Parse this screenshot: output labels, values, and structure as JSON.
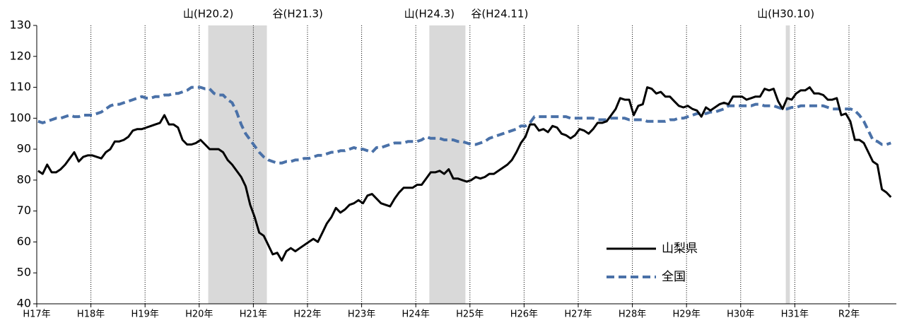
{
  "chart_data": {
    "type": "line",
    "categories": [
      "H17年",
      null,
      null,
      null,
      null,
      null,
      null,
      null,
      null,
      null,
      null,
      null,
      "H18年",
      null,
      null,
      null,
      null,
      null,
      null,
      null,
      null,
      null,
      null,
      null,
      "H19年",
      null,
      null,
      null,
      null,
      null,
      null,
      null,
      null,
      null,
      null,
      null,
      "H20年",
      null,
      null,
      null,
      null,
      null,
      null,
      null,
      null,
      null,
      null,
      null,
      "H21年",
      null,
      null,
      null,
      null,
      null,
      null,
      null,
      null,
      null,
      null,
      null,
      "H22年",
      null,
      null,
      null,
      null,
      null,
      null,
      null,
      null,
      null,
      null,
      null,
      "H23年",
      null,
      null,
      null,
      null,
      null,
      null,
      null,
      null,
      null,
      null,
      null,
      "H24年",
      null,
      null,
      null,
      null,
      null,
      null,
      null,
      null,
      null,
      null,
      null,
      "H25年",
      null,
      null,
      null,
      null,
      null,
      null,
      null,
      null,
      null,
      null,
      null,
      "H26年",
      null,
      null,
      null,
      null,
      null,
      null,
      null,
      null,
      null,
      null,
      null,
      "H27年",
      null,
      null,
      null,
      null,
      null,
      null,
      null,
      null,
      null,
      null,
      null,
      "H28年",
      null,
      null,
      null,
      null,
      null,
      null,
      null,
      null,
      null,
      null,
      null,
      "H29年",
      null,
      null,
      null,
      null,
      null,
      null,
      null,
      null,
      null,
      null,
      null,
      "H30年",
      null,
      null,
      null,
      null,
      null,
      null,
      null,
      null,
      null,
      null,
      null,
      "H31年",
      null,
      null,
      null,
      null,
      null,
      null,
      null,
      null,
      null,
      null,
      null,
      "R2年",
      null,
      null,
      null,
      null,
      null,
      null,
      null,
      null,
      null
    ],
    "series": [
      {
        "name": "山梨県",
        "color": "#000000",
        "dash": false,
        "values": [
          83,
          82,
          85,
          82.5,
          82.5,
          83.5,
          85,
          87,
          89,
          86,
          87.5,
          88,
          88,
          87.5,
          87,
          89,
          90,
          92.5,
          92.5,
          93,
          94,
          96,
          96.5,
          96.5,
          97,
          97.5,
          98,
          98.5,
          101,
          98,
          98,
          97,
          93,
          91.5,
          91.5,
          92,
          93,
          91.5,
          90,
          90,
          90,
          89,
          86.5,
          85,
          83,
          81,
          78,
          72,
          68,
          63,
          62,
          59,
          56,
          56.5,
          54,
          57,
          58,
          57,
          58,
          59,
          60,
          61,
          60,
          63,
          66,
          68,
          71,
          69.5,
          70.5,
          72,
          72.5,
          73.5,
          72.5,
          75,
          75.5,
          74,
          72.5,
          72,
          71.5,
          74,
          76,
          77.5,
          77.5,
          77.5,
          78.5,
          78.5,
          80.5,
          82.5,
          82.5,
          83,
          82,
          83.5,
          80.5,
          80.5,
          80,
          79.5,
          80,
          81,
          80.5,
          81,
          82,
          82,
          83,
          84,
          85,
          86.5,
          89,
          92,
          94,
          98,
          98,
          96,
          96.5,
          95.5,
          97.5,
          97,
          95,
          94.5,
          93.5,
          94.5,
          96.5,
          96,
          95,
          96.5,
          98.5,
          98.5,
          99,
          101,
          103,
          106.5,
          106,
          106,
          101,
          104,
          104.5,
          110,
          109.5,
          108,
          108.5,
          107,
          107,
          105.5,
          104,
          103.5,
          104,
          103,
          102.5,
          100.5,
          103.5,
          102.5,
          103.5,
          104.5,
          105,
          104.5,
          107,
          107,
          107,
          106,
          106.5,
          107,
          107,
          109.5,
          109,
          109.5,
          105.5,
          103,
          106.5,
          106,
          108,
          109,
          109,
          110,
          108,
          108,
          107.5,
          106,
          106,
          106.5,
          101,
          101.5,
          99,
          93,
          93,
          92,
          89,
          86,
          85,
          77,
          76,
          74.5
        ]
      },
      {
        "name": "全国",
        "color": "#4a71a8",
        "dash": true,
        "values": [
          99,
          98.5,
          99,
          99.5,
          100,
          100,
          100.5,
          101,
          100.5,
          100.5,
          101,
          101,
          101,
          101.5,
          102,
          103,
          104,
          104.5,
          104.5,
          105,
          105.5,
          106,
          106.5,
          107,
          106.5,
          106.5,
          107,
          107,
          107.5,
          107.5,
          108,
          108,
          108.5,
          109,
          110,
          110,
          110,
          109.5,
          109.5,
          108,
          107.5,
          107.5,
          106,
          105,
          102,
          98,
          95,
          93,
          91,
          89,
          87.5,
          86.5,
          86,
          85.5,
          85.5,
          86,
          86,
          86.5,
          86.5,
          87,
          87,
          87.5,
          88,
          88,
          88.5,
          89,
          89,
          89.5,
          89.5,
          90,
          90.5,
          90,
          90,
          89.5,
          89,
          90.5,
          90.5,
          91,
          91.5,
          92,
          92,
          92,
          92.5,
          92.5,
          92.5,
          93,
          94,
          93.5,
          93.5,
          93.5,
          93,
          93,
          93,
          92.5,
          92.5,
          92,
          91.5,
          91.5,
          92,
          92.5,
          93.5,
          94,
          94.5,
          95,
          95.5,
          96,
          96.5,
          97.5,
          97.5,
          98.5,
          100.5,
          100.5,
          100.5,
          100.5,
          100.5,
          100.5,
          100.5,
          100.5,
          100,
          100,
          100,
          100,
          100,
          100,
          99.5,
          99.5,
          99.5,
          100,
          100,
          100,
          100,
          99.5,
          99.5,
          99.5,
          99.5,
          99,
          99,
          99,
          99,
          99,
          99.5,
          99.5,
          100,
          100,
          100.5,
          101,
          101.5,
          101.5,
          101.5,
          102,
          102,
          102.5,
          103,
          104,
          104,
          104,
          104,
          104,
          104,
          104.5,
          104.5,
          104,
          104,
          104,
          103.5,
          103,
          103,
          103.5,
          103.5,
          104,
          104,
          104,
          104,
          104,
          104,
          103.5,
          103,
          103,
          103,
          103,
          103,
          102.5,
          101,
          99,
          96,
          93,
          92.5,
          91.5,
          91.5,
          92
        ]
      }
    ],
    "ylim": [
      40,
      130
    ],
    "yticks": [
      40,
      50,
      60,
      70,
      80,
      90,
      100,
      110,
      120,
      130
    ],
    "grid": "vertical-dotted",
    "legend": "lower right",
    "shading": [
      {
        "peak": "山(H20.2)",
        "trough": "谷(H21.3)"
      },
      {
        "peak": "山(H24.3)",
        "trough": "谷(H24.11)"
      },
      {
        "peak": "山(H30.10)"
      }
    ]
  }
}
